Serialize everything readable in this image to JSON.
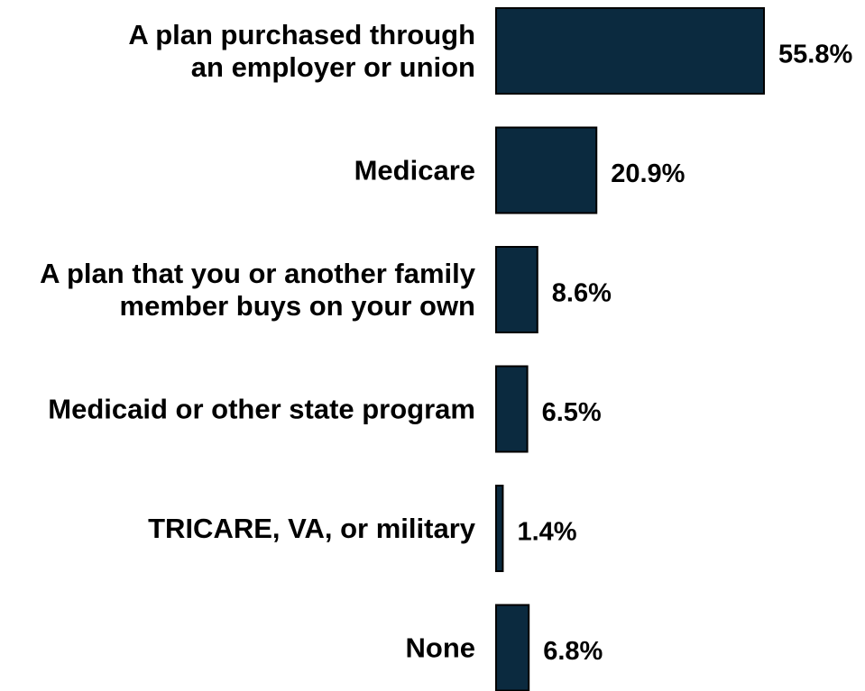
{
  "chart_data": {
    "type": "bar",
    "orientation": "horizontal",
    "categories": [
      [
        "A plan purchased through",
        "an employer or union"
      ],
      [
        "Medicare"
      ],
      [
        "A plan that you or another family",
        "member buys on your own"
      ],
      [
        "Medicaid or other state program"
      ],
      [
        "TRICARE, VA, or military"
      ],
      [
        "None"
      ]
    ],
    "values": [
      55.8,
      20.9,
      8.6,
      6.5,
      1.4,
      6.8
    ],
    "value_labels": [
      "55.8%",
      "20.9%",
      "8.6%",
      "6.5%",
      "1.4%",
      "6.8%"
    ],
    "xlim": [
      0,
      56
    ],
    "grid": false,
    "legend": "none",
    "bar_color": "#0b2a3f",
    "bar_outline": "#000000"
  }
}
